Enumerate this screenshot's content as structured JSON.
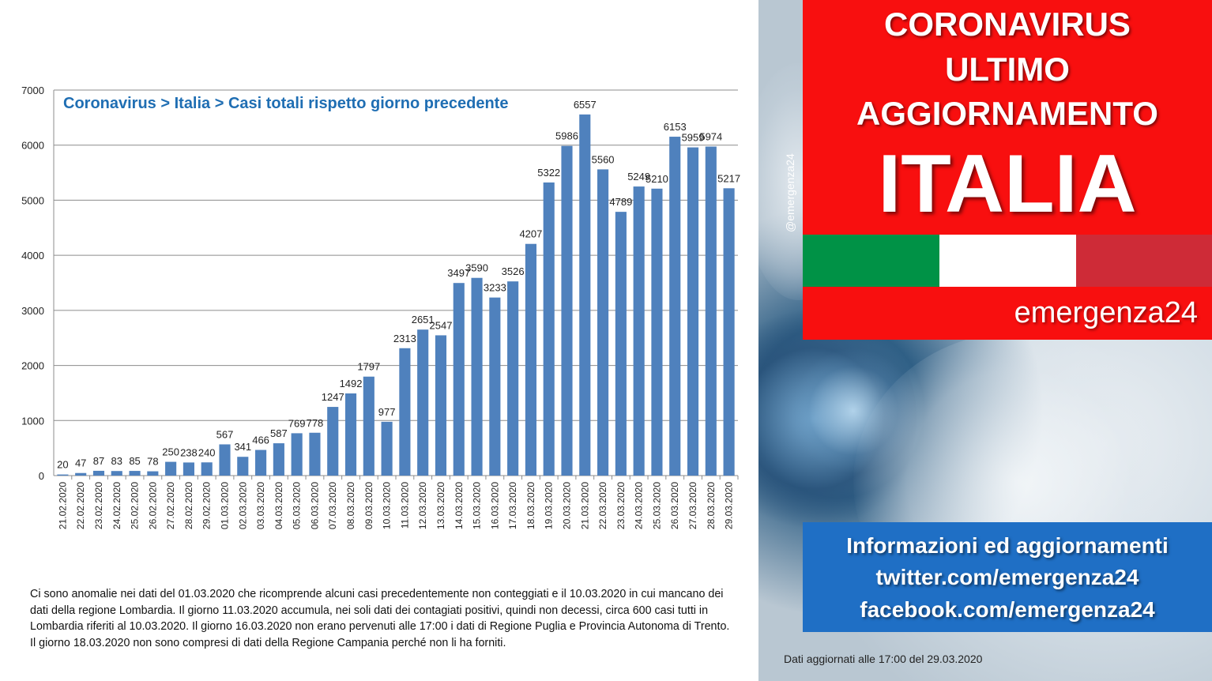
{
  "chart_data": {
    "type": "bar",
    "title": "Coronavirus > Italia > Casi totali rispetto giorno precedente",
    "categories": [
      "21.02.2020",
      "22.02.2020",
      "23.02.2020",
      "24.02.2020",
      "25.02.2020",
      "26.02.2020",
      "27.02.2020",
      "28.02.2020",
      "29.02.2020",
      "01.03.2020",
      "02.03.2020",
      "03.03.2020",
      "04.03.2020",
      "05.03.2020",
      "06.03.2020",
      "07.03.2020",
      "08.03.2020",
      "09.03.2020",
      "10.03.2020",
      "11.03.2020",
      "12.03.2020",
      "13.03.2020",
      "14.03.2020",
      "15.03.2020",
      "16.03.2020",
      "17.03.2020",
      "18.03.2020",
      "19.03.2020",
      "20.03.2020",
      "21.03.2020",
      "22.03.2020",
      "23.03.2020",
      "24.03.2020",
      "25.03.2020",
      "26.03.2020",
      "27.03.2020",
      "28.03.2020",
      "29.03.2020"
    ],
    "values": [
      20,
      47,
      87,
      83,
      85,
      78,
      250,
      238,
      240,
      567,
      341,
      466,
      587,
      769,
      778,
      1247,
      1492,
      1797,
      977,
      2313,
      2651,
      2547,
      3497,
      3590,
      3233,
      3526,
      4207,
      5322,
      5986,
      6557,
      5560,
      4789,
      5249,
      5210,
      6153,
      5959,
      5974,
      5217
    ],
    "ylim": [
      0,
      7000
    ],
    "yticks": [
      0,
      1000,
      2000,
      3000,
      4000,
      5000,
      6000,
      7000
    ],
    "grid": true,
    "bar_color": "#4f81bd",
    "xlabel": "",
    "ylabel": ""
  },
  "note": "Ci sono anomalie nei dati del 01.03.2020 che ricomprende alcuni casi precedentemente  non conteggiati e il 10.03.2020 in cui mancano dei dati della regione Lombardia. Il giorno 11.03.2020  accumula, nei soli dati dei contagiati positivi, quindi non decessi, circa 600 casi tutti in Lombardia riferiti al 10.03.2020. Il giorno 16.03.2020 non erano pervenuti alle 17:00 i dati di Regione Puglia e Provincia Autonoma di Trento. Il giorno 18.03.2020 non sono compresi di dati della Regione Campania perché non li ha forniti.",
  "banner": {
    "line1": "CORONAVIRUS",
    "line2": "ULTIMO",
    "line3": "AGGIORNAMENTO",
    "country": "ITALIA",
    "brand": "emergenza24",
    "side_handle": "@emergenza24"
  },
  "flag_colors": [
    "#009246",
    "#ffffff",
    "#ce2b37"
  ],
  "info": {
    "line1": "Informazioni ed aggiornamenti",
    "line2": "twitter.com/emergenza24",
    "line3": "facebook.com/emergenza24"
  },
  "updated": "Dati aggiornati alle 17:00 del 29.03.2020"
}
